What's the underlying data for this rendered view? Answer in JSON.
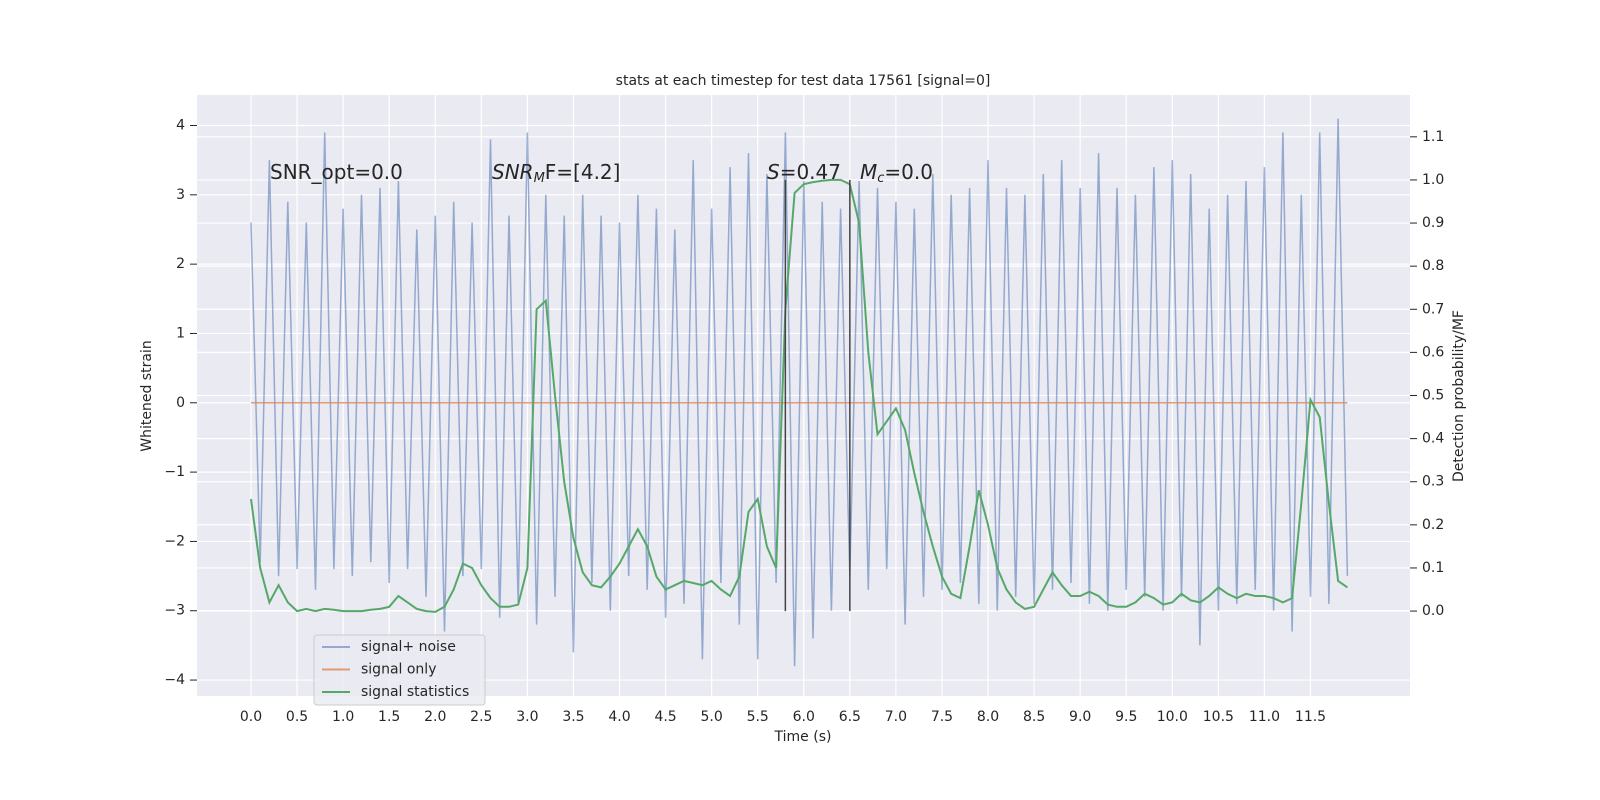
{
  "chart_data": {
    "type": "line",
    "title": "stats at each timestep for test data 17561 [signal=0]",
    "xlabel": "Time (s)",
    "ylabel": "Whitened strain",
    "y2label": "Detection probability/MF",
    "annotations": [
      [
        "SNR_opt=0.0"
      ],
      [
        "SNR",
        "M",
        "F=[4.2]"
      ],
      [
        "S",
        "=0.47"
      ],
      [
        "M",
        "c",
        "=0.0"
      ]
    ],
    "x": [
      0.0,
      0.1,
      0.2,
      0.3,
      0.4,
      0.5,
      0.6,
      0.7,
      0.8,
      0.9,
      1.0,
      1.1,
      1.2,
      1.3,
      1.4,
      1.5,
      1.6,
      1.7,
      1.8,
      1.9,
      2.0,
      2.1,
      2.2,
      2.3,
      2.4,
      2.5,
      2.6,
      2.7,
      2.8,
      2.9,
      3.0,
      3.1,
      3.2,
      3.3,
      3.4,
      3.5,
      3.6,
      3.7,
      3.8,
      3.9,
      4.0,
      4.1,
      4.2,
      4.3,
      4.4,
      4.5,
      4.6,
      4.7,
      4.8,
      4.9,
      5.0,
      5.1,
      5.2,
      5.3,
      5.4,
      5.5,
      5.6,
      5.7,
      5.8,
      5.9,
      6.0,
      6.1,
      6.2,
      6.3,
      6.4,
      6.5,
      6.6,
      6.7,
      6.8,
      6.9,
      7.0,
      7.1,
      7.2,
      7.3,
      7.4,
      7.5,
      7.6,
      7.7,
      7.8,
      7.9,
      8.0,
      8.1,
      8.2,
      8.3,
      8.4,
      8.5,
      8.6,
      8.7,
      8.8,
      8.9,
      9.0,
      9.1,
      9.2,
      9.3,
      9.4,
      9.5,
      9.6,
      9.7,
      9.8,
      9.9,
      10.0,
      10.1,
      10.2,
      10.3,
      10.4,
      10.5,
      10.6,
      10.7,
      10.8,
      10.9,
      11.0,
      11.1,
      11.2,
      11.3,
      11.4,
      11.5,
      11.6,
      11.7,
      11.8,
      11.9
    ],
    "series": [
      {
        "name": "signal+ noise",
        "color": "#4c72b0",
        "values": [
          2.6,
          -2.3,
          3.5,
          -2.5,
          2.9,
          -2.4,
          2.6,
          -2.7,
          3.9,
          -2.4,
          2.8,
          -2.5,
          3.0,
          -2.3,
          3.1,
          -2.6,
          3.2,
          -2.4,
          2.5,
          -2.8,
          2.7,
          -3.3,
          2.9,
          -2.5,
          2.6,
          -2.4,
          3.8,
          -3.1,
          2.7,
          -2.9,
          3.9,
          -3.2,
          3.0,
          -2.8,
          2.7,
          -3.6,
          3.0,
          -2.6,
          2.7,
          -3.0,
          2.6,
          -2.5,
          3.0,
          -2.7,
          2.8,
          -3.1,
          2.5,
          -2.9,
          3.5,
          -3.7,
          2.8,
          -2.6,
          3.4,
          -3.2,
          3.6,
          -3.7,
          3.3,
          -2.6,
          3.9,
          -3.8,
          3.2,
          -3.4,
          2.9,
          -3.0,
          2.8,
          -2.5,
          3.2,
          -2.7,
          3.1,
          -2.4,
          2.9,
          -3.2,
          2.8,
          -2.8,
          3.3,
          -2.7,
          3.0,
          -2.6,
          3.1,
          -2.9,
          3.5,
          -3.0,
          3.1,
          -2.8,
          3.0,
          -2.9,
          3.3,
          -2.7,
          3.5,
          -2.6,
          3.1,
          -2.9,
          3.6,
          -3.0,
          3.1,
          -2.7,
          3.0,
          -2.8,
          3.4,
          -3.0,
          3.5,
          -2.8,
          3.3,
          -3.5,
          2.8,
          -3.0,
          3.0,
          -2.9,
          3.2,
          -2.7,
          3.4,
          -3.0,
          3.9,
          -3.3,
          3.0,
          -2.8,
          3.9,
          -2.9,
          4.1,
          -2.5
        ]
      },
      {
        "name": "signal only",
        "color": "#dd8452",
        "values": [
          0,
          0,
          0,
          0,
          0,
          0,
          0,
          0,
          0,
          0,
          0,
          0,
          0,
          0,
          0,
          0,
          0,
          0,
          0,
          0,
          0,
          0,
          0,
          0,
          0,
          0,
          0,
          0,
          0,
          0,
          0,
          0,
          0,
          0,
          0,
          0,
          0,
          0,
          0,
          0,
          0,
          0,
          0,
          0,
          0,
          0,
          0,
          0,
          0,
          0,
          0,
          0,
          0,
          0,
          0,
          0,
          0,
          0,
          0,
          0,
          0,
          0,
          0,
          0,
          0,
          0,
          0,
          0,
          0,
          0,
          0,
          0,
          0,
          0,
          0,
          0,
          0,
          0,
          0,
          0,
          0,
          0,
          0,
          0,
          0,
          0,
          0,
          0,
          0,
          0,
          0,
          0,
          0,
          0,
          0,
          0,
          0,
          0,
          0,
          0,
          0,
          0,
          0,
          0,
          0,
          0,
          0,
          0,
          0,
          0,
          0,
          0,
          0,
          0,
          0,
          0,
          0,
          0,
          0,
          0
        ]
      },
      {
        "name": "signal statistics",
        "color": "#55a868",
        "axis": "y2",
        "values": [
          0.26,
          0.1,
          0.02,
          0.06,
          0.02,
          0.0,
          0.005,
          0.0,
          0.005,
          0.003,
          0.0,
          0.0,
          0.0,
          0.003,
          0.005,
          0.01,
          0.035,
          0.02,
          0.005,
          0.0,
          -0.002,
          0.01,
          0.05,
          0.11,
          0.1,
          0.06,
          0.03,
          0.01,
          0.01,
          0.015,
          0.1,
          0.7,
          0.72,
          0.5,
          0.3,
          0.17,
          0.09,
          0.06,
          0.055,
          0.08,
          0.11,
          0.15,
          0.19,
          0.15,
          0.08,
          0.05,
          0.06,
          0.07,
          0.065,
          0.06,
          0.07,
          0.05,
          0.035,
          0.08,
          0.23,
          0.26,
          0.15,
          0.1,
          0.7,
          0.97,
          0.99,
          0.995,
          0.998,
          1.0,
          1.0,
          0.99,
          0.9,
          0.6,
          0.41,
          0.44,
          0.47,
          0.42,
          0.32,
          0.23,
          0.15,
          0.08,
          0.04,
          0.03,
          0.15,
          0.28,
          0.2,
          0.1,
          0.05,
          0.02,
          0.005,
          0.01,
          0.05,
          0.09,
          0.06,
          0.035,
          0.035,
          0.045,
          0.035,
          0.015,
          0.01,
          0.01,
          0.02,
          0.04,
          0.03,
          0.015,
          0.02,
          0.04,
          0.025,
          0.02,
          0.035,
          0.055,
          0.04,
          0.03,
          0.04,
          0.035,
          0.035,
          0.03,
          0.02,
          0.03,
          0.25,
          0.49,
          0.45,
          0.25,
          0.07,
          0.055
        ]
      }
    ],
    "vlines": [
      {
        "x": 5.8,
        "ymin": 0,
        "ymax": 1,
        "axis": "y2",
        "color": "#444444"
      },
      {
        "x": 6.5,
        "ymin": 0,
        "ymax": 1,
        "axis": "y2",
        "color": "#444444"
      }
    ],
    "xlim": [
      -0.586,
      12.58
    ],
    "xticks": [
      {
        "value": 0,
        "label": "0.0"
      },
      0.5,
      {
        "value": 1,
        "label": "1.0"
      },
      1.5,
      {
        "value": 2,
        "label": "2.0"
      },
      2.5,
      {
        "value": 3,
        "label": "3.0"
      },
      3.5,
      {
        "value": 4,
        "label": "4.0"
      },
      4.5,
      {
        "value": 5,
        "label": "5.0"
      },
      5.5,
      {
        "value": 6,
        "label": "6.0"
      },
      6.5,
      {
        "value": 7,
        "label": "7.0"
      },
      7.5,
      {
        "value": 8,
        "label": "8.0"
      },
      8.5,
      {
        "value": 9,
        "label": "9.0"
      },
      9.5,
      {
        "value": 10,
        "label": "10.0"
      },
      10.5,
      {
        "value": 11,
        "label": "11.0"
      },
      11.5
    ],
    "ylim": [
      -4.23,
      4.44
    ],
    "yticks": [
      {
        "value": -4,
        "label": "−4"
      },
      {
        "value": -3,
        "label": "−3"
      },
      {
        "value": -2,
        "label": "−2"
      },
      {
        "value": -1,
        "label": "−1"
      },
      0,
      1,
      2,
      3,
      4
    ],
    "y2lim": [
      -0.197,
      1.197
    ],
    "y2ticks": [
      {
        "value": 0,
        "label": "0.0"
      },
      0.1,
      0.2,
      0.3,
      0.4,
      0.5,
      0.6,
      0.7,
      0.8,
      0.9,
      {
        "value": 1,
        "label": "1.0"
      },
      1.1
    ],
    "grid": true,
    "legend": "lower left"
  }
}
